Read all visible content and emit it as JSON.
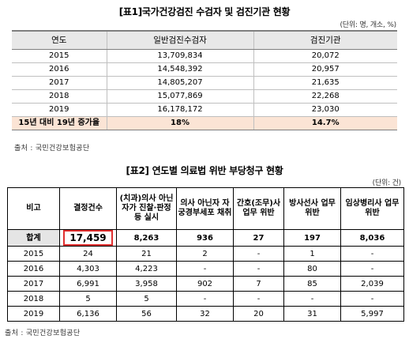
{
  "table1": {
    "title": "[표1]국가건강검진 수검자 및 검진기관 현황",
    "unit": "(단위: 명, 개소, %)",
    "headers": [
      "연도",
      "일반검진수검자",
      "검진기관"
    ],
    "rows": [
      [
        "2015",
        "13,709,834",
        "20,072"
      ],
      [
        "2016",
        "14,548,392",
        "20,957"
      ],
      [
        "2017",
        "14,805,207",
        "21,635"
      ],
      [
        "2018",
        "15,077,869",
        "22,268"
      ],
      [
        "2019",
        "16,178,172",
        "23,030"
      ]
    ],
    "total": [
      "15년 대비 19년 증가율",
      "18%",
      "14.7%"
    ],
    "source": "출처 : 국민건강보험공단"
  },
  "table2": {
    "title": "[표2] 연도별 의료법 위반 부당청구 현황",
    "unit": "(단위: 건)",
    "headers": [
      "비고",
      "결정건수",
      "(치과)의사 아닌 자가 진찰·판정 등 실시",
      "의사 아닌자 자궁경부세포 채취",
      "간호(조무)사 업무 위반",
      "방사선사 업무 위반",
      "임상병리사 업무 위반"
    ],
    "sum_row": [
      "합계",
      "17,459",
      "8,263",
      "936",
      "27",
      "197",
      "8,036"
    ],
    "rows": [
      [
        "2015",
        "24",
        "21",
        "2",
        "-",
        "1",
        "-"
      ],
      [
        "2016",
        "4,303",
        "4,223",
        "-",
        "-",
        "80",
        "-"
      ],
      [
        "2017",
        "6,991",
        "3,958",
        "902",
        "7",
        "85",
        "2,039"
      ],
      [
        "2018",
        "5",
        "5",
        "-",
        "-",
        "-",
        "-"
      ],
      [
        "2019",
        "6,136",
        "56",
        "32",
        "20",
        "31",
        "5,997"
      ]
    ],
    "source": "출처 : 국민건강보험공단"
  }
}
